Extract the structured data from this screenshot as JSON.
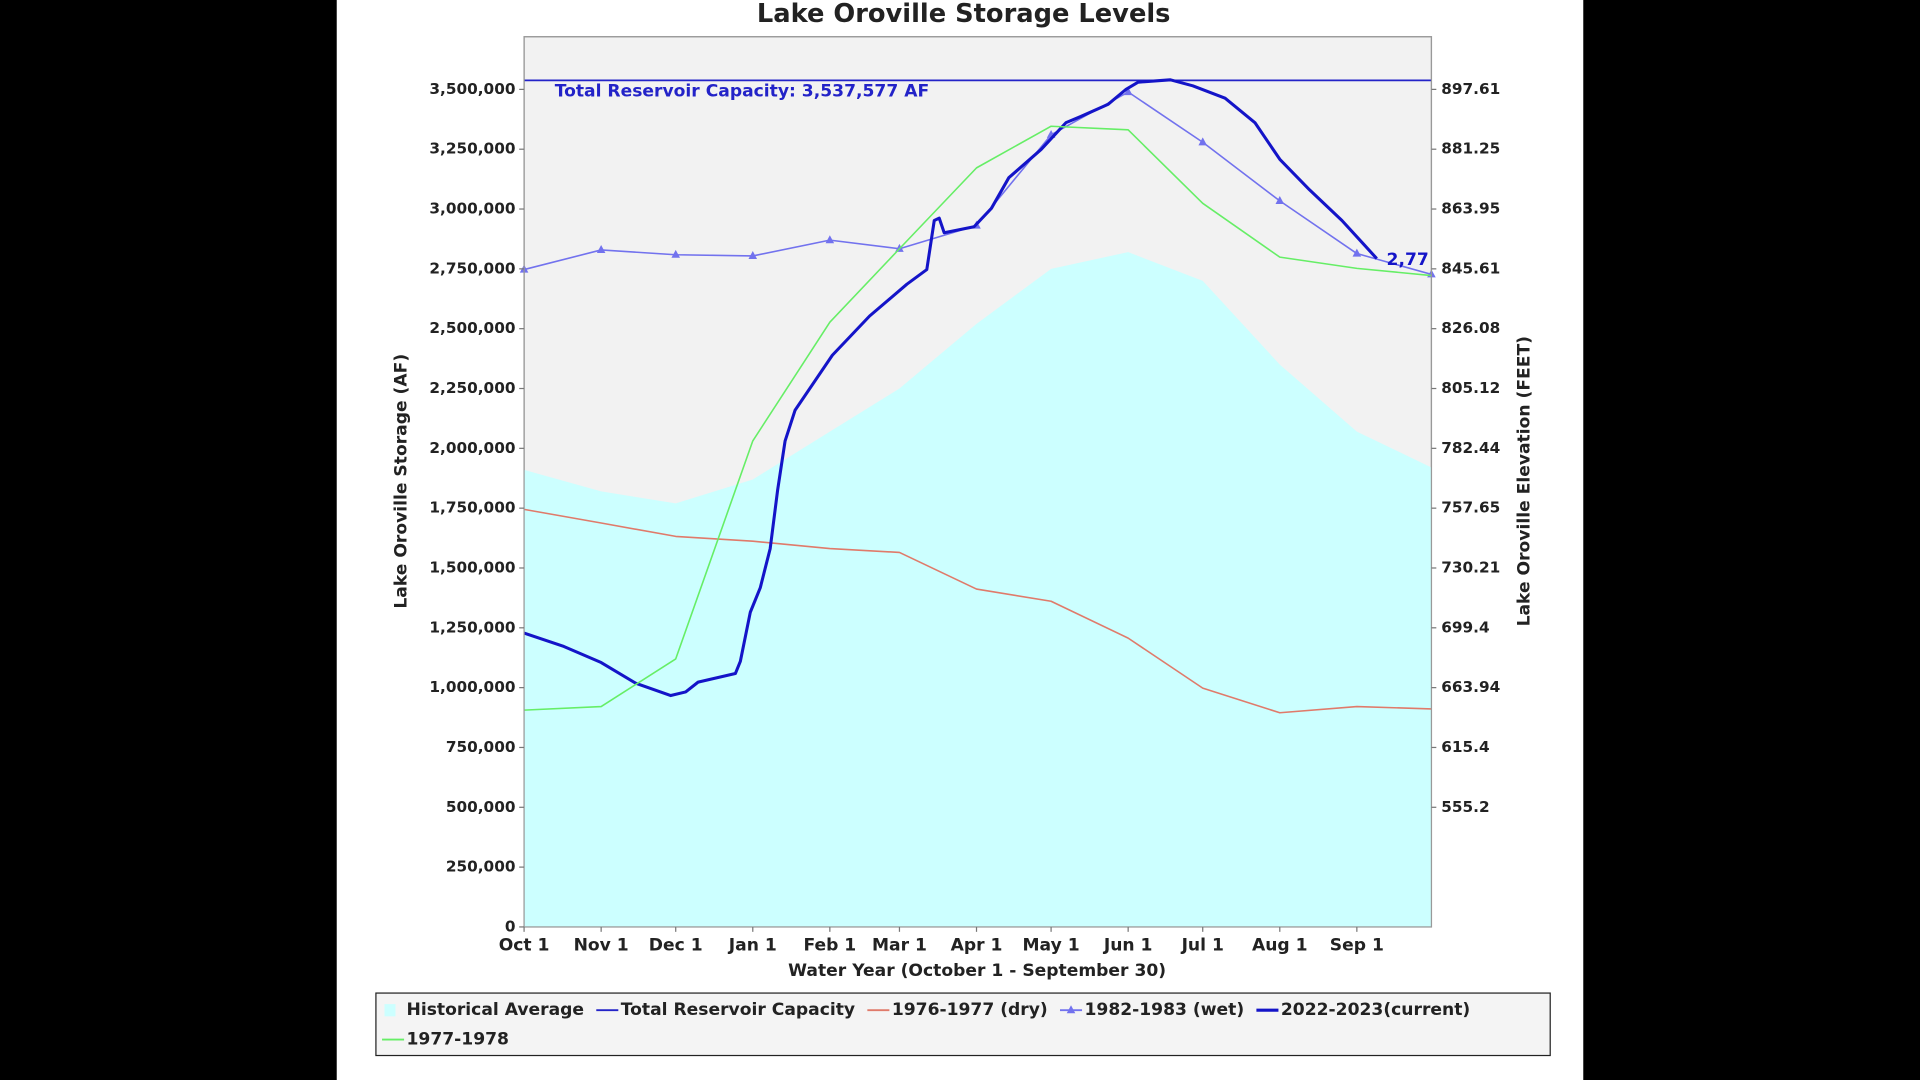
{
  "chart_data": {
    "type": "line",
    "title": "Lake Oroville Storage Levels",
    "x_label": "Water Year (October 1 - September 30)",
    "y_label": "Lake Oroville Storage (AF)",
    "y2_label": "Lake Oroville Elevation (FEET)",
    "xlim": [
      0,
      365
    ],
    "xticks": [
      {
        "value": 0,
        "label": "Oct 1"
      },
      {
        "value": 31,
        "label": "Nov 1"
      },
      {
        "value": 61,
        "label": "Dec 1"
      },
      {
        "value": 92,
        "label": "Jan 1"
      },
      {
        "value": 123,
        "label": "Feb 1"
      },
      {
        "value": 151,
        "label": "Mar 1"
      },
      {
        "value": 182,
        "label": "Apr 1"
      },
      {
        "value": 212,
        "label": "May 1"
      },
      {
        "value": 243,
        "label": "Jun 1"
      },
      {
        "value": 273,
        "label": "Jul 1"
      },
      {
        "value": 304,
        "label": "Aug 1"
      },
      {
        "value": 335,
        "label": "Sep 1"
      }
    ],
    "ylim": [
      0,
      3720000
    ],
    "yticks": [
      0,
      {
        "value": 250000,
        "label": "250,000"
      },
      {
        "value": 500000,
        "label": "500,000"
      },
      {
        "value": 750000,
        "label": "750,000"
      },
      {
        "value": 1000000,
        "label": "1,000,000"
      },
      {
        "value": 1250000,
        "label": "1,250,000"
      },
      {
        "value": 1500000,
        "label": "1,500,000"
      },
      {
        "value": 1750000,
        "label": "1,750,000"
      },
      {
        "value": 2000000,
        "label": "2,000,000"
      },
      {
        "value": 2250000,
        "label": "2,250,000"
      },
      {
        "value": 2500000,
        "label": "2,500,000"
      },
      {
        "value": 2750000,
        "label": "2,750,000"
      },
      {
        "value": 3000000,
        "label": "3,000,000"
      },
      {
        "value": 3250000,
        "label": "3,250,000"
      },
      {
        "value": 3500000,
        "label": "3,500,000"
      }
    ],
    "y2ticks": [
      897.61,
      881.25,
      863.95,
      845.61,
      826.08,
      805.12,
      782.44,
      757.65,
      730.21,
      699.4,
      663.94,
      615.4,
      555.2
    ],
    "y2tick_storage": [
      3500000,
      3250000,
      3000000,
      2750000,
      2500000,
      2250000,
      2000000,
      1750000,
      1500000,
      1250000,
      1000000,
      750000,
      500000
    ],
    "x": [
      0,
      31,
      61,
      92,
      123,
      151,
      182,
      212,
      243,
      273,
      304,
      335,
      365
    ],
    "capacity": {
      "name": "Total Reservoir Capacity",
      "color": "#2323c8",
      "value": 3537577,
      "label": "Total Reservoir Capacity: 3,537,577 AF"
    },
    "end_label": "2,77",
    "series": [
      {
        "name": "Historical Average",
        "color": "#ccffff",
        "kind": "area",
        "values": [
          1910000,
          1820000,
          1770000,
          1870000,
          2070000,
          2250000,
          2520000,
          2750000,
          2820000,
          2700000,
          2350000,
          2070000,
          1920000
        ]
      },
      {
        "name": "1976-1977 (dry)",
        "color": "#e07a6a",
        "kind": "line",
        "values": [
          1745000,
          1688000,
          1632000,
          1612000,
          1581000,
          1565000,
          1412000,
          1361000,
          1207000,
          998000,
          895000,
          921000,
          911000
        ]
      },
      {
        "name": "1982-1983 (wet)",
        "color": "#7272ee",
        "kind": "line",
        "marker": "triangle",
        "values": [
          2747000,
          2829000,
          2809000,
          2804000,
          2870000,
          2834000,
          2931000,
          3310000,
          3489000,
          3279000,
          3034000,
          2814000,
          2727000
        ]
      },
      {
        "name": "2022-2023(current)",
        "color": "#1414c8",
        "kind": "line",
        "width": 2.5,
        "x": [
          0,
          16,
          31,
          45,
          59,
          65,
          70,
          85,
          87,
          91,
          95,
          99,
          102,
          105,
          109,
          124,
          139,
          154,
          162,
          165,
          167,
          169,
          181,
          188,
          195,
          208,
          218,
          224,
          235,
          242,
          247,
          260,
          269,
          282,
          294,
          304,
          316,
          329,
          338,
          343
        ],
        "values": [
          1228000,
          1172000,
          1105000,
          1018000,
          967000,
          982000,
          1023000,
          1059000,
          1110000,
          1315000,
          1417000,
          1581000,
          1826000,
          2031000,
          2159000,
          2389000,
          2553000,
          2686000,
          2747000,
          2952000,
          2962000,
          2901000,
          2926000,
          3003000,
          3131000,
          3249000,
          3361000,
          3387000,
          3438000,
          3499000,
          3530000,
          3540000,
          3515000,
          3463000,
          3361000,
          3208000,
          3080000,
          2952000,
          2850000,
          2793000
        ]
      },
      {
        "name": "1977-1978",
        "color": "#66ee66",
        "kind": "line",
        "values": [
          906000,
          921000,
          1120000,
          2031000,
          2527000,
          2834000,
          3172000,
          3346000,
          3331000,
          3024000,
          2799000,
          2752000,
          2722000
        ]
      }
    ]
  }
}
